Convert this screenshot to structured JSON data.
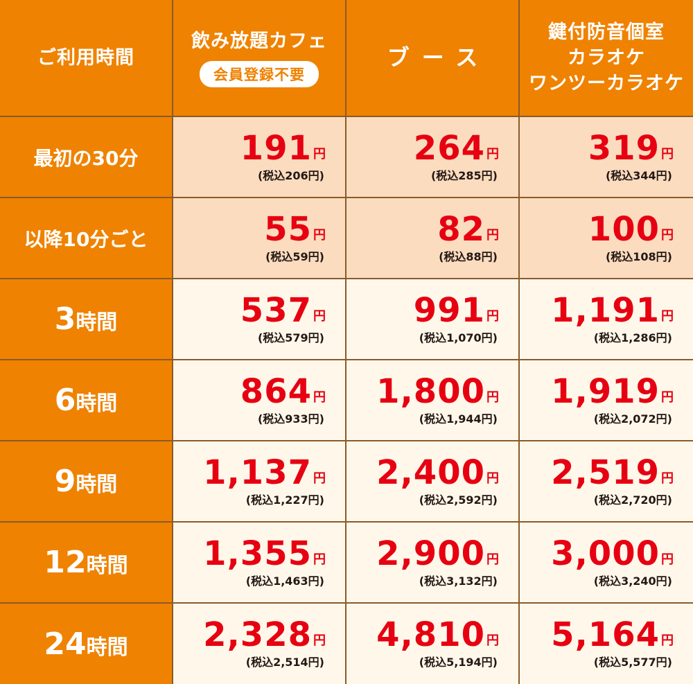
{
  "header": {
    "label_col": "ご利用時間",
    "columns": [
      {
        "lines": [
          "飲み放題カフェ"
        ],
        "badge": "会員登録不要"
      },
      {
        "lines": [
          "ブース"
        ],
        "badge": ""
      },
      {
        "lines": [
          "鍵付防音個室",
          "カラオケ",
          "ワンツーカラオケ"
        ],
        "badge": ""
      }
    ]
  },
  "unit": "円",
  "rows": [
    {
      "label": "最初の30分",
      "num": "",
      "suffix": "",
      "shade": "peach",
      "prices": [
        {
          "amount": "191",
          "tax": "(税込206円)"
        },
        {
          "amount": "264",
          "tax": "(税込285円)"
        },
        {
          "amount": "319",
          "tax": "(税込344円)"
        }
      ]
    },
    {
      "label": "以降10分ごと",
      "num": "",
      "suffix": "",
      "shade": "peach",
      "prices": [
        {
          "amount": "55",
          "tax": "(税込59円)"
        },
        {
          "amount": "82",
          "tax": "(税込88円)"
        },
        {
          "amount": "100",
          "tax": "(税込108円)"
        }
      ]
    },
    {
      "label": "",
      "num": "3",
      "suffix": "時間",
      "shade": "cream",
      "prices": [
        {
          "amount": "537",
          "tax": "(税込579円)"
        },
        {
          "amount": "991",
          "tax": "(税込1,070円)"
        },
        {
          "amount": "1,191",
          "tax": "(税込1,286円)"
        }
      ]
    },
    {
      "label": "",
      "num": "6",
      "suffix": "時間",
      "shade": "cream",
      "prices": [
        {
          "amount": "864",
          "tax": "(税込933円)"
        },
        {
          "amount": "1,800",
          "tax": "(税込1,944円)"
        },
        {
          "amount": "1,919",
          "tax": "(税込2,072円)"
        }
      ]
    },
    {
      "label": "",
      "num": "9",
      "suffix": "時間",
      "shade": "cream",
      "prices": [
        {
          "amount": "1,137",
          "tax": "(税込1,227円)"
        },
        {
          "amount": "2,400",
          "tax": "(税込2,592円)"
        },
        {
          "amount": "2,519",
          "tax": "(税込2,720円)"
        }
      ]
    },
    {
      "label": "",
      "num": "12",
      "suffix": "時間",
      "shade": "cream",
      "prices": [
        {
          "amount": "1,355",
          "tax": "(税込1,463円)"
        },
        {
          "amount": "2,900",
          "tax": "(税込3,132円)"
        },
        {
          "amount": "3,000",
          "tax": "(税込3,240円)"
        }
      ]
    },
    {
      "label": "",
      "num": "24",
      "suffix": "時間",
      "shade": "cream",
      "prices": [
        {
          "amount": "2,328",
          "tax": "(税込2,514円)"
        },
        {
          "amount": "4,810",
          "tax": "(税込5,194円)"
        },
        {
          "amount": "5,164",
          "tax": "(税込5,577円)"
        }
      ]
    }
  ],
  "colors": {
    "header_bg": "#ef8200",
    "peach_bg": "#fbdcbf",
    "cream_bg": "#fff8ea",
    "price_red": "#e60012",
    "grid_line": "#8a5a2b"
  }
}
